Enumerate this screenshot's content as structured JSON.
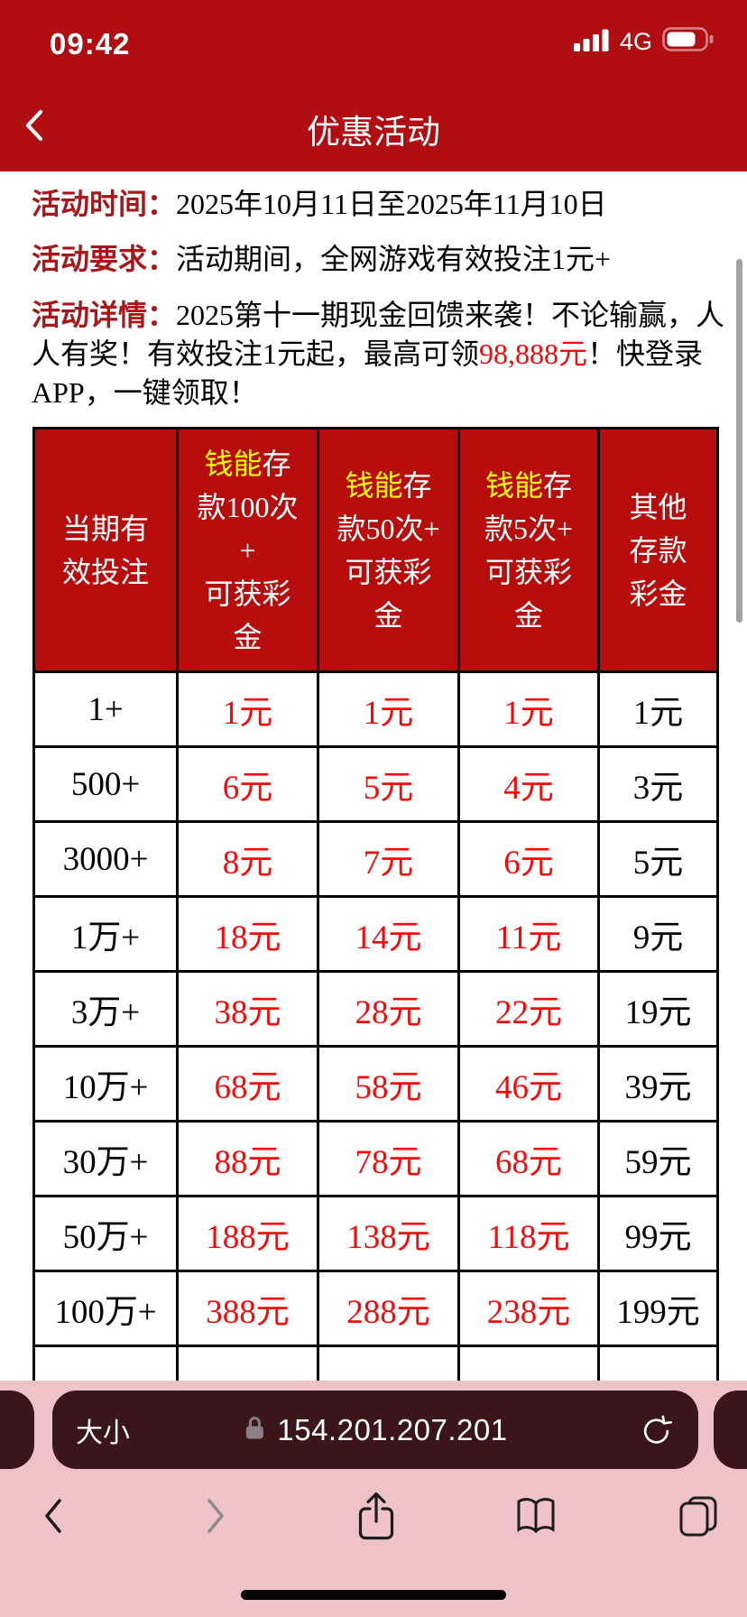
{
  "status_bar": {
    "time": "09:42",
    "network": "4G",
    "signal_icon": "signal-bars-4",
    "battery_icon": "battery-about-75-percent"
  },
  "nav": {
    "back_icon": "chevron-left",
    "title": "优惠活动"
  },
  "promo": {
    "time": {
      "label": "活动时间：",
      "text": "2025年10月11日至2025年11月10日"
    },
    "require": {
      "label": "活动要求：",
      "text": "活动期间，全网游戏有效投注1元+"
    },
    "detail": {
      "label": "活动详情：",
      "before": "2025第十一期现金回馈来袭！不论输赢，人人有奖！有效投注1元起，最高可领",
      "highlight": "98,888元",
      "after": "！快登录APP，一键领取！"
    }
  },
  "table": {
    "headers": [
      {
        "lines": [
          "当期有",
          "效投注"
        ]
      },
      {
        "highlight": "钱能",
        "lines": [
          "钱能存",
          "款100次",
          "+",
          "可获彩",
          "金"
        ]
      },
      {
        "highlight": "钱能",
        "lines": [
          "钱能存",
          "款50次+",
          "可获彩",
          "金"
        ]
      },
      {
        "highlight": "钱能",
        "lines": [
          "钱能存",
          "款5次+",
          "可获彩",
          "金"
        ]
      },
      {
        "lines": [
          "其他",
          "存款",
          "彩金"
        ]
      }
    ],
    "rows": [
      {
        "bet": "1+",
        "values": [
          "1元",
          "1元",
          "1元",
          "1元"
        ]
      },
      {
        "bet": "500+",
        "values": [
          "6元",
          "5元",
          "4元",
          "3元"
        ]
      },
      {
        "bet": "3000+",
        "values": [
          "8元",
          "7元",
          "6元",
          "5元"
        ]
      },
      {
        "bet": "1万+",
        "values": [
          "18元",
          "14元",
          "11元",
          "9元"
        ]
      },
      {
        "bet": "3万+",
        "values": [
          "38元",
          "28元",
          "22元",
          "19元"
        ]
      },
      {
        "bet": "10万+",
        "values": [
          "68元",
          "58元",
          "46元",
          "39元"
        ]
      },
      {
        "bet": "30万+",
        "values": [
          "88元",
          "78元",
          "68元",
          "59元"
        ]
      },
      {
        "bet": "50万+",
        "values": [
          "188元",
          "138元",
          "118元",
          "99元"
        ]
      },
      {
        "bet": "100万+",
        "values": [
          "388元",
          "288元",
          "238元",
          "199元"
        ]
      }
    ]
  },
  "browser": {
    "font_size_label": "大小",
    "lock_icon": "padlock",
    "url": "154.201.207.201",
    "reload_icon": "circular-arrow",
    "toolbar_icons": [
      "chevron-back",
      "chevron-forward",
      "share-up-arrow",
      "open-book",
      "tab-squares"
    ]
  },
  "colors": {
    "header_red": "#B00E12",
    "table_header_red": "#B70D0D",
    "label_dark_red": "#A9171A",
    "value_bright_red": "#F90808",
    "highlight_yellow": "#FFFF00",
    "chrome_pink": "#EFC2C7",
    "address_pill_maroon": "#3A161A"
  }
}
